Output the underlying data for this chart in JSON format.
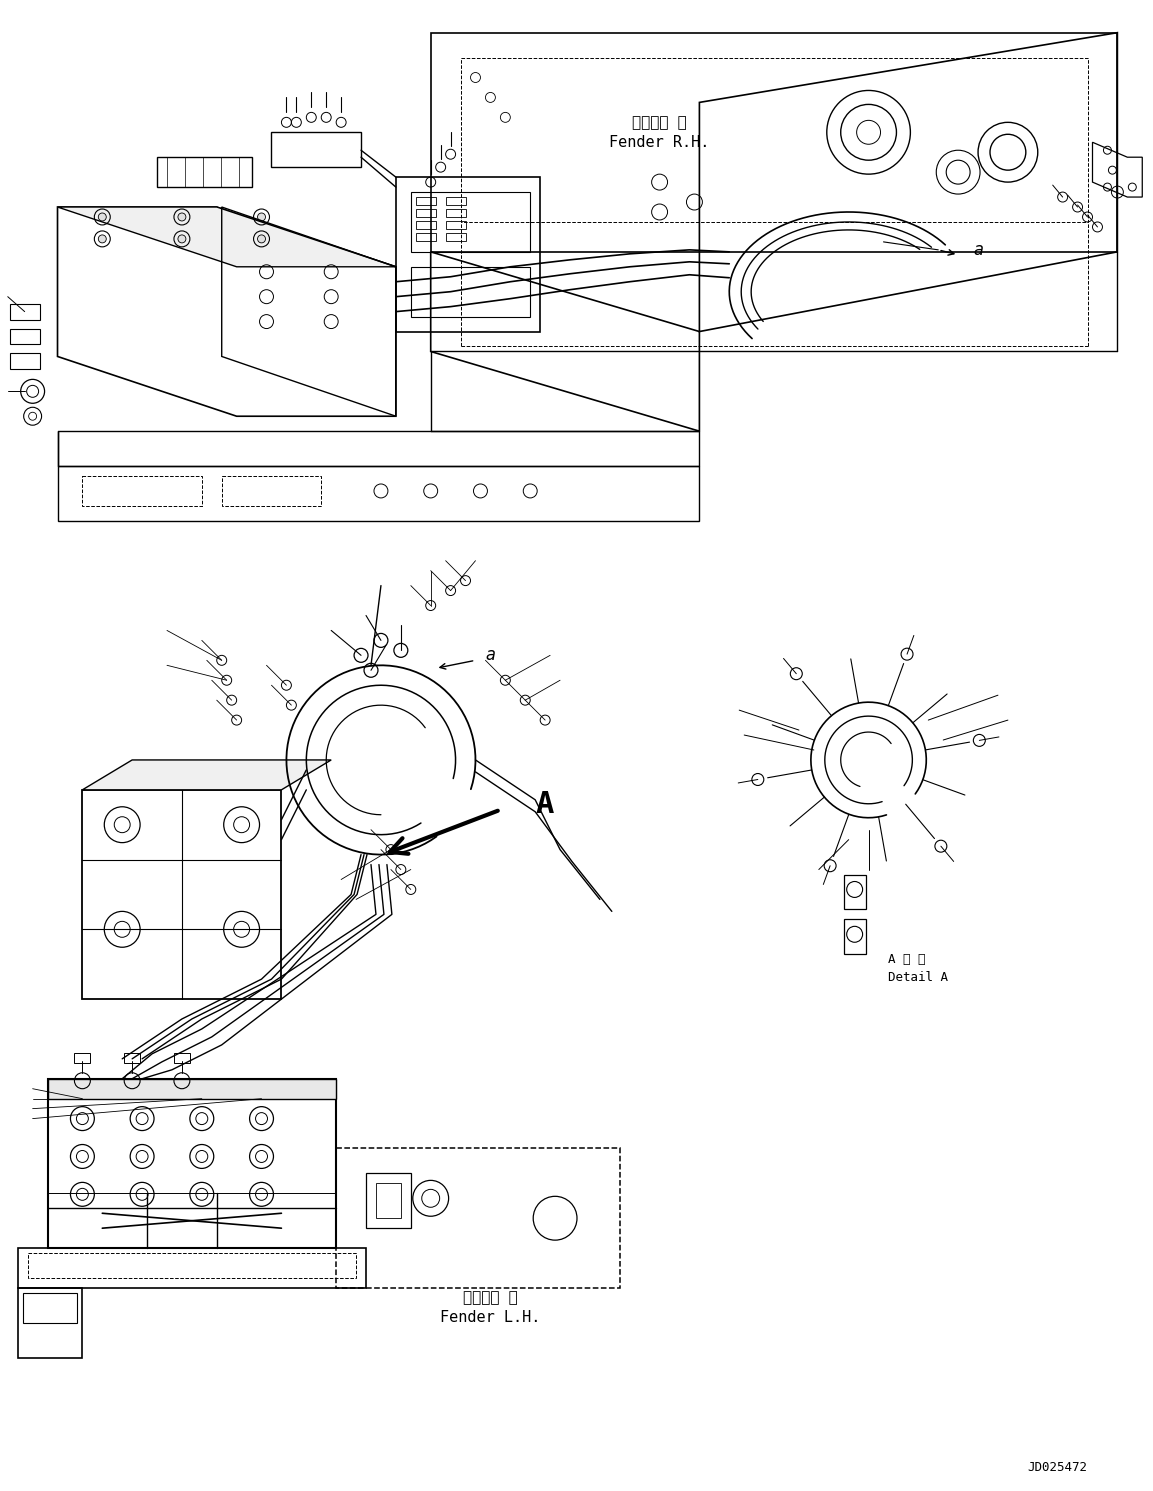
{
  "background_color": "#ffffff",
  "fig_width": 11.53,
  "fig_height": 14.91,
  "dpi": 100,
  "line_color": "#000000",
  "text_fender_rh_jp": "フェンダ 右",
  "text_fender_rh": "Fender R.H.",
  "text_fender_lh_jp": "フェンダ 左",
  "text_fender_lh": "Fender L.H.",
  "text_detail_jp": "A 詳 細",
  "text_detail": "Detail A",
  "text_code": "JD025472",
  "text_a": "a",
  "text_A": "A"
}
